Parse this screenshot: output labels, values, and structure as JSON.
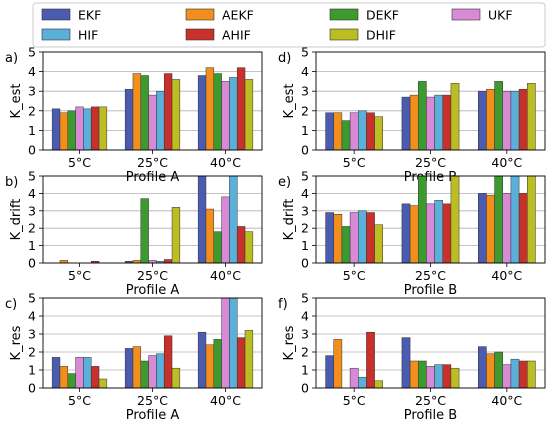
{
  "legend": {
    "entries": [
      {
        "name": "EKF",
        "color": "#4a5bb0"
      },
      {
        "name": "AEKF",
        "color": "#f28e1c"
      },
      {
        "name": "DEKF",
        "color": "#3c9a2e"
      },
      {
        "name": "UKF",
        "color": "#d98ad6"
      },
      {
        "name": "HIF",
        "color": "#5bb0d9"
      },
      {
        "name": "AHIF",
        "color": "#c8302b"
      },
      {
        "name": "DHIF",
        "color": "#bcbd22"
      }
    ]
  },
  "chart_data": [
    {
      "type": "bar",
      "panel_label": "a)",
      "ylabel": "K_est",
      "xlabel": "Profile A",
      "categories": [
        "5°C",
        "25°C",
        "40°C"
      ],
      "ylim": [
        0,
        5
      ],
      "yticks": [
        "0",
        "1",
        "2",
        "3",
        "4",
        "5"
      ],
      "grid": true,
      "series": [
        {
          "name": "EKF",
          "values": [
            2.1,
            3.1,
            3.8
          ]
        },
        {
          "name": "AEKF",
          "values": [
            1.9,
            3.9,
            4.2
          ]
        },
        {
          "name": "DEKF",
          "values": [
            2.0,
            3.8,
            3.9
          ]
        },
        {
          "name": "UKF",
          "values": [
            2.2,
            2.8,
            3.5
          ]
        },
        {
          "name": "HIF",
          "values": [
            2.1,
            3.0,
            3.7
          ]
        },
        {
          "name": "AHIF",
          "values": [
            2.2,
            3.9,
            4.2
          ]
        },
        {
          "name": "DHIF",
          "values": [
            2.2,
            3.6,
            3.6
          ]
        }
      ]
    },
    {
      "type": "bar",
      "panel_label": "d)",
      "ylabel": "K_est",
      "xlabel": "Profile B",
      "categories": [
        "5°C",
        "25°C",
        "40°C"
      ],
      "ylim": [
        0,
        5
      ],
      "yticks": [
        "0",
        "1",
        "2",
        "3",
        "4",
        "5"
      ],
      "grid": true,
      "series": [
        {
          "name": "EKF",
          "values": [
            1.9,
            2.7,
            3.0
          ]
        },
        {
          "name": "AEKF",
          "values": [
            1.9,
            2.8,
            3.1
          ]
        },
        {
          "name": "DEKF",
          "values": [
            1.5,
            3.5,
            3.5
          ]
        },
        {
          "name": "UKF",
          "values": [
            1.9,
            2.7,
            3.0
          ]
        },
        {
          "name": "HIF",
          "values": [
            2.0,
            2.8,
            3.0
          ]
        },
        {
          "name": "AHIF",
          "values": [
            1.9,
            2.8,
            3.1
          ]
        },
        {
          "name": "DHIF",
          "values": [
            1.7,
            3.4,
            3.4
          ]
        }
      ]
    },
    {
      "type": "bar",
      "panel_label": "b)",
      "ylabel": "K_drift",
      "xlabel": "Profile A",
      "categories": [
        "5°C",
        "25°C",
        "40°C"
      ],
      "ylim": [
        0,
        5
      ],
      "yticks": [
        "0",
        "1",
        "2",
        "3",
        "4",
        "5"
      ],
      "grid": true,
      "series": [
        {
          "name": "EKF",
          "values": [
            0.0,
            0.1,
            5.0
          ]
        },
        {
          "name": "AEKF",
          "values": [
            0.15,
            0.15,
            3.1
          ]
        },
        {
          "name": "DEKF",
          "values": [
            0.0,
            3.7,
            1.8
          ]
        },
        {
          "name": "UKF",
          "values": [
            0.0,
            0.15,
            3.8
          ]
        },
        {
          "name": "HIF",
          "values": [
            0.0,
            0.1,
            5.0
          ]
        },
        {
          "name": "AHIF",
          "values": [
            0.1,
            0.2,
            2.1
          ]
        },
        {
          "name": "DHIF",
          "values": [
            0.0,
            3.2,
            1.8
          ]
        }
      ]
    },
    {
      "type": "bar",
      "panel_label": "e)",
      "ylabel": "K_drift",
      "xlabel": "Profile B",
      "categories": [
        "5°C",
        "25°C",
        "40°C"
      ],
      "ylim": [
        0,
        5
      ],
      "yticks": [
        "0",
        "1",
        "2",
        "3",
        "4",
        "5"
      ],
      "grid": true,
      "series": [
        {
          "name": "EKF",
          "values": [
            2.9,
            3.4,
            4.0
          ]
        },
        {
          "name": "AEKF",
          "values": [
            2.8,
            3.3,
            3.9
          ]
        },
        {
          "name": "DEKF",
          "values": [
            2.1,
            5.0,
            5.0
          ]
        },
        {
          "name": "UKF",
          "values": [
            2.9,
            3.4,
            4.0
          ]
        },
        {
          "name": "HIF",
          "values": [
            3.0,
            3.6,
            5.0
          ]
        },
        {
          "name": "AHIF",
          "values": [
            2.9,
            3.4,
            4.0
          ]
        },
        {
          "name": "DHIF",
          "values": [
            2.2,
            5.0,
            5.0
          ]
        }
      ]
    },
    {
      "type": "bar",
      "panel_label": "c)",
      "ylabel": "K_res",
      "xlabel": "Profile A",
      "categories": [
        "5°C",
        "25°C",
        "40°C"
      ],
      "ylim": [
        0,
        5
      ],
      "yticks": [
        "0",
        "1",
        "2",
        "3",
        "4",
        "5"
      ],
      "grid": true,
      "series": [
        {
          "name": "EKF",
          "values": [
            1.7,
            2.2,
            3.1
          ]
        },
        {
          "name": "AEKF",
          "values": [
            1.2,
            2.3,
            2.4
          ]
        },
        {
          "name": "DEKF",
          "values": [
            0.8,
            1.5,
            2.7
          ]
        },
        {
          "name": "UKF",
          "values": [
            1.7,
            1.8,
            5.0
          ]
        },
        {
          "name": "HIF",
          "values": [
            1.7,
            1.9,
            5.0
          ]
        },
        {
          "name": "AHIF",
          "values": [
            1.2,
            2.9,
            2.8
          ]
        },
        {
          "name": "DHIF",
          "values": [
            0.5,
            1.1,
            3.2
          ]
        }
      ]
    },
    {
      "type": "bar",
      "panel_label": "f)",
      "ylabel": "K_res",
      "xlabel": "Profile B",
      "categories": [
        "5°C",
        "25°C",
        "40°C"
      ],
      "ylim": [
        0,
        5
      ],
      "yticks": [
        "0",
        "1",
        "2",
        "3",
        "4",
        "5"
      ],
      "grid": true,
      "series": [
        {
          "name": "EKF",
          "values": [
            1.8,
            2.8,
            2.3
          ]
        },
        {
          "name": "AEKF",
          "values": [
            2.7,
            1.5,
            1.9
          ]
        },
        {
          "name": "DEKF",
          "values": [
            0.0,
            1.5,
            2.0
          ]
        },
        {
          "name": "UKF",
          "values": [
            1.1,
            1.2,
            1.3
          ]
        },
        {
          "name": "HIF",
          "values": [
            0.6,
            1.3,
            1.6
          ]
        },
        {
          "name": "AHIF",
          "values": [
            3.1,
            1.3,
            1.5
          ]
        },
        {
          "name": "DHIF",
          "values": [
            0.4,
            1.1,
            1.5
          ]
        }
      ]
    }
  ]
}
